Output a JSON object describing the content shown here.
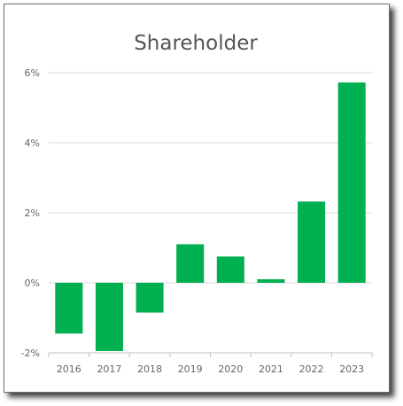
{
  "chart_data": {
    "type": "bar",
    "title": "Shareholder",
    "categories": [
      "2016",
      "2017",
      "2018",
      "2019",
      "2020",
      "2021",
      "2022",
      "2023"
    ],
    "values": [
      -1.45,
      -1.95,
      -0.85,
      1.1,
      0.75,
      0.1,
      2.32,
      5.72
    ],
    "ylim": [
      -2,
      6
    ],
    "yticks": [
      -2,
      0,
      2,
      4,
      6
    ],
    "ytick_labels": [
      "-2%",
      "0%",
      "2%",
      "4%",
      "6%"
    ],
    "grid": true,
    "legend": "none",
    "bar_color": "#00b050"
  }
}
